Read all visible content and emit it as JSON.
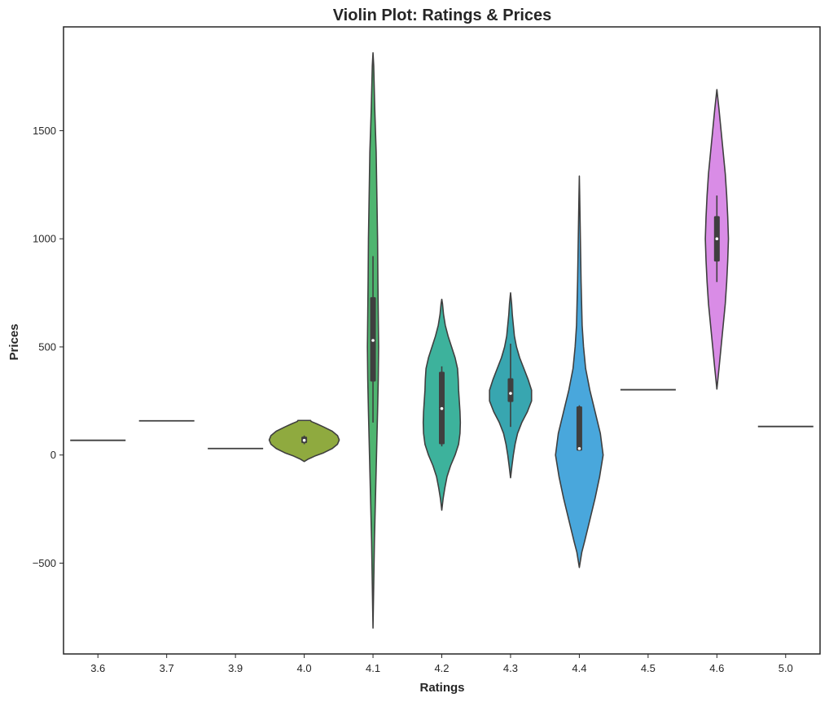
{
  "chart_data": {
    "type": "violin",
    "title": "Violin Plot: Ratings & Prices",
    "xlabel": "Ratings",
    "ylabel": "Prices",
    "categories": [
      "3.6",
      "3.7",
      "3.9",
      "4.0",
      "4.1",
      "4.2",
      "4.3",
      "4.4",
      "4.5",
      "4.6",
      "5.0"
    ],
    "ylim": [
      -920,
      1980
    ],
    "yticks": [
      -500,
      0,
      500,
      1000,
      1500
    ],
    "ytick_labels": [
      "−500",
      "0",
      "500",
      "1000",
      "1500"
    ],
    "grid": false,
    "violins": [
      {
        "category": "3.6",
        "color": "#d58fbd",
        "single_value": 68
      },
      {
        "category": "3.7",
        "color": "#e98888",
        "single_value": 158
      },
      {
        "category": "3.9",
        "color": "#c99c6e",
        "single_value": 30
      },
      {
        "category": "4.0",
        "color": "#8faa3f",
        "min": -30,
        "max": 160,
        "q1": 55,
        "median": 68,
        "q3": 85,
        "whisker_low": 50,
        "whisker_high": 90,
        "profile": [
          [
            -30,
            0
          ],
          [
            -20,
            0.1
          ],
          [
            -5,
            0.3
          ],
          [
            10,
            0.55
          ],
          [
            30,
            0.8
          ],
          [
            50,
            0.95
          ],
          [
            70,
            1
          ],
          [
            90,
            0.95
          ],
          [
            110,
            0.8
          ],
          [
            130,
            0.55
          ],
          [
            145,
            0.35
          ],
          [
            155,
            0.2
          ],
          [
            160,
            0.18
          ]
        ]
      },
      {
        "category": "4.1",
        "color": "#4fb570",
        "min": -800,
        "max": 1860,
        "q1": 340,
        "median": 530,
        "q3": 730,
        "whisker_low": 150,
        "whisker_high": 920,
        "profile": [
          [
            -800,
            0
          ],
          [
            -600,
            0.02
          ],
          [
            -400,
            0.04
          ],
          [
            -200,
            0.07
          ],
          [
            0,
            0.1
          ],
          [
            200,
            0.13
          ],
          [
            350,
            0.15
          ],
          [
            500,
            0.16
          ],
          [
            650,
            0.15
          ],
          [
            800,
            0.14
          ],
          [
            1000,
            0.13
          ],
          [
            1200,
            0.11
          ],
          [
            1400,
            0.09
          ],
          [
            1600,
            0.05
          ],
          [
            1800,
            0.02
          ],
          [
            1860,
            0
          ]
        ]
      },
      {
        "category": "4.2",
        "color": "#3db29c",
        "min": -255,
        "max": 720,
        "q1": 50,
        "median": 215,
        "q3": 385,
        "whisker_low": 40,
        "whisker_high": 410,
        "profile": [
          [
            -255,
            0
          ],
          [
            -200,
            0.04
          ],
          [
            -150,
            0.09
          ],
          [
            -100,
            0.15
          ],
          [
            -50,
            0.25
          ],
          [
            0,
            0.38
          ],
          [
            50,
            0.48
          ],
          [
            100,
            0.52
          ],
          [
            150,
            0.53
          ],
          [
            200,
            0.52
          ],
          [
            250,
            0.5
          ],
          [
            300,
            0.48
          ],
          [
            350,
            0.47
          ],
          [
            400,
            0.45
          ],
          [
            450,
            0.38
          ],
          [
            500,
            0.28
          ],
          [
            550,
            0.18
          ],
          [
            600,
            0.1
          ],
          [
            650,
            0.05
          ],
          [
            700,
            0.02
          ],
          [
            720,
            0
          ]
        ]
      },
      {
        "category": "4.3",
        "color": "#38a6b0",
        "min": -105,
        "max": 750,
        "q1": 245,
        "median": 285,
        "q3": 355,
        "whisker_low": 130,
        "whisker_high": 515,
        "profile": [
          [
            -105,
            0
          ],
          [
            -50,
            0.04
          ],
          [
            0,
            0.08
          ],
          [
            50,
            0.13
          ],
          [
            100,
            0.2
          ],
          [
            150,
            0.32
          ],
          [
            200,
            0.48
          ],
          [
            250,
            0.6
          ],
          [
            300,
            0.6
          ],
          [
            350,
            0.5
          ],
          [
            400,
            0.38
          ],
          [
            450,
            0.26
          ],
          [
            500,
            0.17
          ],
          [
            550,
            0.11
          ],
          [
            600,
            0.08
          ],
          [
            650,
            0.05
          ],
          [
            700,
            0.03
          ],
          [
            750,
            0
          ]
        ]
      },
      {
        "category": "4.4",
        "color": "#49a7dc",
        "min": -520,
        "max": 1290,
        "q1": 20,
        "median": 30,
        "q3": 225,
        "whisker_low": 20,
        "whisker_high": 230,
        "profile": [
          [
            -520,
            0
          ],
          [
            -450,
            0.07
          ],
          [
            -400,
            0.15
          ],
          [
            -300,
            0.3
          ],
          [
            -200,
            0.45
          ],
          [
            -100,
            0.58
          ],
          [
            0,
            0.68
          ],
          [
            100,
            0.6
          ],
          [
            200,
            0.45
          ],
          [
            300,
            0.3
          ],
          [
            400,
            0.18
          ],
          [
            500,
            0.12
          ],
          [
            600,
            0.08
          ],
          [
            800,
            0.05
          ],
          [
            1000,
            0.03
          ],
          [
            1200,
            0.01
          ],
          [
            1290,
            0
          ]
        ]
      },
      {
        "category": "4.5",
        "color": "#9c8fe0",
        "single_value": 302
      },
      {
        "category": "4.6",
        "color": "#d98ce6",
        "min": 305,
        "max": 1690,
        "q1": 895,
        "median": 1000,
        "q3": 1105,
        "whisker_low": 800,
        "whisker_high": 1200,
        "profile": [
          [
            305,
            0
          ],
          [
            400,
            0.06
          ],
          [
            500,
            0.12
          ],
          [
            600,
            0.18
          ],
          [
            700,
            0.24
          ],
          [
            800,
            0.28
          ],
          [
            900,
            0.31
          ],
          [
            1000,
            0.33
          ],
          [
            1100,
            0.31
          ],
          [
            1200,
            0.28
          ],
          [
            1300,
            0.24
          ],
          [
            1400,
            0.18
          ],
          [
            1500,
            0.12
          ],
          [
            1600,
            0.06
          ],
          [
            1690,
            0
          ]
        ]
      },
      {
        "category": "5.0",
        "color": "#e58ab4",
        "single_value": 132
      }
    ]
  }
}
